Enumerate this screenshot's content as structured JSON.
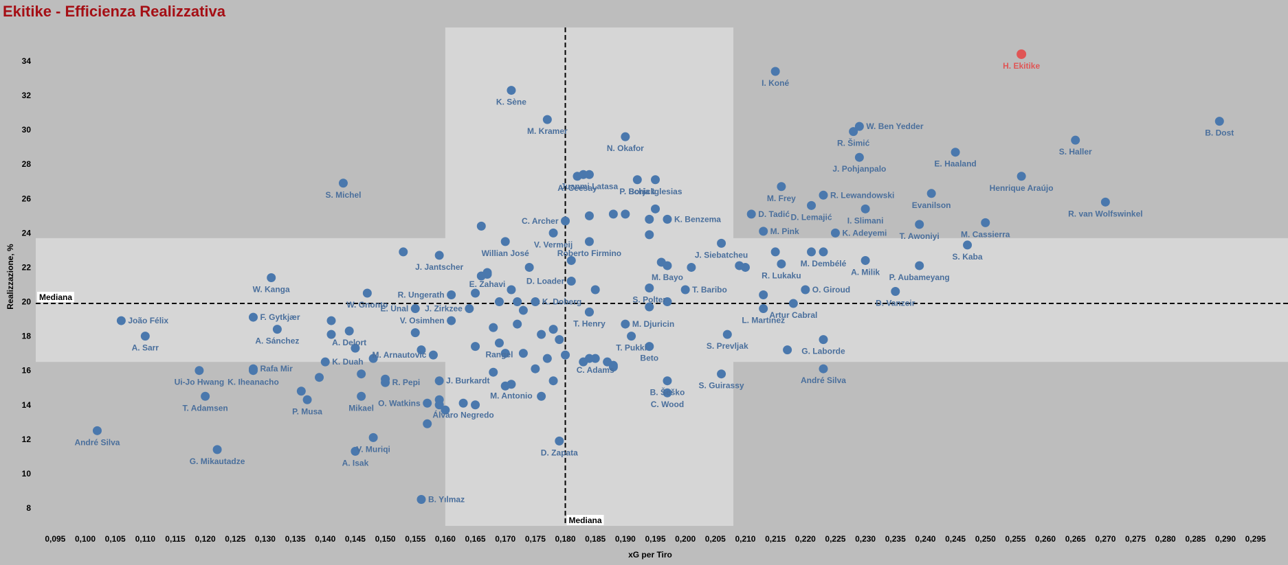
{
  "page": {
    "title": "Ekitike - Efficienza Realizzativa"
  },
  "chart_data": {
    "type": "scatter",
    "title": "Ekitike - Efficienza Realizzativa",
    "xlabel": "xG per Tiro",
    "ylabel": "Realizzazione, %",
    "xlim": [
      0.093,
      0.297
    ],
    "ylim": [
      6.8,
      35.5
    ],
    "x_ticks": [
      "0,095",
      "0,100",
      "0,105",
      "0,110",
      "0,115",
      "0,120",
      "0,125",
      "0,130",
      "0,135",
      "0,140",
      "0,145",
      "0,150",
      "0,155",
      "0,160",
      "0,165",
      "0,170",
      "0,175",
      "0,180",
      "0,185",
      "0,190",
      "0,195",
      "0,200",
      "0,205",
      "0,210",
      "0,215",
      "0,220",
      "0,225",
      "0,230",
      "0,235",
      "0,240",
      "0,245",
      "0,250",
      "0,255",
      "0,260",
      "0,265",
      "0,270",
      "0,275",
      "0,280",
      "0,285",
      "0,290",
      "0,295"
    ],
    "y_ticks": [
      "8",
      "10",
      "12",
      "14",
      "16",
      "18",
      "20",
      "22",
      "24",
      "26",
      "28",
      "30",
      "32",
      "34"
    ],
    "median_x": 0.18,
    "median_y": 19.9,
    "median_x_label": "Mediana",
    "median_y_label": "Mediana",
    "band_x": [
      0.16,
      0.208
    ],
    "band_y": [
      16.5,
      23.7
    ],
    "colors": {
      "background": "#bdbdbd",
      "band": "#d6d6d6",
      "point": "#4a78ad",
      "label": "#4a6f9c",
      "highlight": "#e05555",
      "title": "#a50f15"
    },
    "highlight": {
      "name": "H. Ekitike",
      "x": 0.256,
      "y": 34.4
    },
    "points": [
      {
        "name": "I. Koné",
        "x": 0.215,
        "y": 33.4
      },
      {
        "name": "K. Sène",
        "x": 0.171,
        "y": 32.3
      },
      {
        "name": "M. Kramer",
        "x": 0.177,
        "y": 30.6
      },
      {
        "name": "N. Okafor",
        "x": 0.19,
        "y": 29.6
      },
      {
        "name": "W. Ben Yedder",
        "x": 0.229,
        "y": 30.2
      },
      {
        "name": "R. Šimić",
        "x": 0.228,
        "y": 29.9
      },
      {
        "name": "J. Pohjanpalo",
        "x": 0.229,
        "y": 28.4
      },
      {
        "name": "E. Haaland",
        "x": 0.245,
        "y": 28.7
      },
      {
        "name": "S. Haller",
        "x": 0.265,
        "y": 29.4
      },
      {
        "name": "B. Dost",
        "x": 0.289,
        "y": 30.5
      },
      {
        "name": "S. Michel",
        "x": 0.143,
        "y": 26.9
      },
      {
        "name": "A. Ceesay",
        "x": 0.182,
        "y": 27.3
      },
      {
        "name": "P. Schick",
        "x": 0.192,
        "y": 27.1
      },
      {
        "name": "Borja Iglesias",
        "x": 0.195,
        "y": 27.1
      },
      {
        "name": "M. Frey",
        "x": 0.216,
        "y": 26.7
      },
      {
        "name": "R. Lewandowski",
        "x": 0.223,
        "y": 26.2
      },
      {
        "name": "Henrique Araújo",
        "x": 0.256,
        "y": 27.3
      },
      {
        "name": "Juanmi Latasa",
        "x": 0.184,
        "y": 27.4
      },
      {
        "name": "Evanilson",
        "x": 0.241,
        "y": 26.3
      },
      {
        "name": "R. van Wolfswinkel",
        "x": 0.27,
        "y": 25.8
      },
      {
        "name": "D. Tadić",
        "x": 0.211,
        "y": 25.1
      },
      {
        "name": "D. Lemajić",
        "x": 0.221,
        "y": 25.6
      },
      {
        "name": "I. Slimani",
        "x": 0.23,
        "y": 25.4
      },
      {
        "name": "K. Benzema",
        "x": 0.197,
        "y": 24.8
      },
      {
        "name": "C. Archer",
        "x": 0.18,
        "y": 24.7
      },
      {
        "name": "M. Pink",
        "x": 0.213,
        "y": 24.1
      },
      {
        "name": "K. Adeyemi",
        "x": 0.225,
        "y": 24.0
      },
      {
        "name": "T. Awoniyi",
        "x": 0.239,
        "y": 24.5
      },
      {
        "name": "M. Cassierra",
        "x": 0.25,
        "y": 24.6
      },
      {
        "name": "V. Vermeij",
        "x": 0.178,
        "y": 24.0
      },
      {
        "name": "Willian José",
        "x": 0.17,
        "y": 23.5
      },
      {
        "name": "Roberto Firmino",
        "x": 0.184,
        "y": 23.5
      },
      {
        "name": "J. Siebatcheu",
        "x": 0.206,
        "y": 23.4
      },
      {
        "name": "S. Kaba",
        "x": 0.247,
        "y": 23.3
      },
      {
        "name": "J. Jantscher",
        "x": 0.159,
        "y": 22.7
      },
      {
        "name": "M. Bayo",
        "x": 0.197,
        "y": 22.1
      },
      {
        "name": "R. Lukaku",
        "x": 0.216,
        "y": 22.2
      },
      {
        "name": "M. Dembélé",
        "x": 0.223,
        "y": 22.9
      },
      {
        "name": "A. Milik",
        "x": 0.23,
        "y": 22.4
      },
      {
        "name": "P. Aubameyang",
        "x": 0.239,
        "y": 22.1
      },
      {
        "name": "W. Kanga",
        "x": 0.131,
        "y": 21.4
      },
      {
        "name": "E. Zahavi",
        "x": 0.167,
        "y": 21.7
      },
      {
        "name": "D. Loader",
        "x": 0.181,
        "y": 21.2
      },
      {
        "name": "S. Polter",
        "x": 0.194,
        "y": 20.8
      },
      {
        "name": "T. Baribo",
        "x": 0.2,
        "y": 20.7
      },
      {
        "name": "O. Giroud",
        "x": 0.22,
        "y": 20.7
      },
      {
        "name": "W. Gnonto",
        "x": 0.147,
        "y": 20.5
      },
      {
        "name": "R. Ungerath",
        "x": 0.161,
        "y": 20.4
      },
      {
        "name": "K. Doberg",
        "x": 0.175,
        "y": 20.0
      },
      {
        "name": "Artur Cabral",
        "x": 0.218,
        "y": 19.9
      },
      {
        "name": "D. Vanzeir",
        "x": 0.235,
        "y": 20.6
      },
      {
        "name": "J. Zirkzee",
        "x": 0.164,
        "y": 19.6
      },
      {
        "name": "E. Ünal",
        "x": 0.155,
        "y": 19.6
      },
      {
        "name": "F. Gytkjær",
        "x": 0.128,
        "y": 19.1
      },
      {
        "name": "João Félix",
        "x": 0.106,
        "y": 18.9
      },
      {
        "name": "L. Martínez",
        "x": 0.213,
        "y": 19.6
      },
      {
        "name": "T. Henry",
        "x": 0.184,
        "y": 19.4
      },
      {
        "name": "M. Djuricin",
        "x": 0.19,
        "y": 18.7
      },
      {
        "name": "V. Osimhen",
        "x": 0.161,
        "y": 18.9
      },
      {
        "name": "A. Sánchez",
        "x": 0.132,
        "y": 18.4
      },
      {
        "name": "A. Sarr",
        "x": 0.11,
        "y": 18.0
      },
      {
        "name": "A. Delort",
        "x": 0.144,
        "y": 18.3
      },
      {
        "name": "S. Prevljak",
        "x": 0.207,
        "y": 18.1
      },
      {
        "name": "G. Laborde",
        "x": 0.223,
        "y": 17.8
      },
      {
        "name": "T. Pukki",
        "x": 0.191,
        "y": 18.0
      },
      {
        "name": "Beto",
        "x": 0.194,
        "y": 17.4
      },
      {
        "name": "Rangel",
        "x": 0.169,
        "y": 17.6
      },
      {
        "name": "C. Adams",
        "x": 0.185,
        "y": 16.7
      },
      {
        "name": "M. Arnautović",
        "x": 0.158,
        "y": 16.9
      },
      {
        "name": "K. Duah",
        "x": 0.14,
        "y": 16.5
      },
      {
        "name": "Rafa Mir",
        "x": 0.128,
        "y": 16.1
      },
      {
        "name": "Ui-Jo Hwang",
        "x": 0.119,
        "y": 16.0
      },
      {
        "name": "K. Iheanacho",
        "x": 0.128,
        "y": 16.0
      },
      {
        "name": "R. Pepi",
        "x": 0.15,
        "y": 15.3
      },
      {
        "name": "B. Šeško",
        "x": 0.197,
        "y": 15.4
      },
      {
        "name": "S. Guirassy",
        "x": 0.206,
        "y": 15.8
      },
      {
        "name": "André Silva",
        "x": 0.223,
        "y": 16.1
      },
      {
        "name": "J. Burkardt",
        "x": 0.159,
        "y": 15.4
      },
      {
        "name": "M. Antonio",
        "x": 0.171,
        "y": 15.2
      },
      {
        "name": "C. Wood",
        "x": 0.197,
        "y": 14.7
      },
      {
        "name": "T. Adamsen",
        "x": 0.12,
        "y": 14.5
      },
      {
        "name": "P. Musa",
        "x": 0.137,
        "y": 14.3
      },
      {
        "name": "Mikael",
        "x": 0.146,
        "y": 14.5
      },
      {
        "name": "O. Watkins",
        "x": 0.157,
        "y": 14.1
      },
      {
        "name": "Álvaro Negredo",
        "x": 0.163,
        "y": 14.1
      },
      {
        "name": "André Silva",
        "x": 0.102,
        "y": 12.5
      },
      {
        "name": "V. Muriqi",
        "x": 0.148,
        "y": 12.1
      },
      {
        "name": "D. Zapata",
        "x": 0.179,
        "y": 11.9
      },
      {
        "name": "G. Mikautadze",
        "x": 0.122,
        "y": 11.4
      },
      {
        "name": "A. Isak",
        "x": 0.145,
        "y": 11.3
      },
      {
        "name": "B. Yılmaz",
        "x": 0.156,
        "y": 8.5
      }
    ],
    "extra_points": [
      {
        "x": 0.183,
        "y": 27.4
      },
      {
        "x": 0.184,
        "y": 25.0
      },
      {
        "x": 0.188,
        "y": 25.1
      },
      {
        "x": 0.19,
        "y": 25.1
      },
      {
        "x": 0.195,
        "y": 25.4
      },
      {
        "x": 0.194,
        "y": 24.8
      },
      {
        "x": 0.166,
        "y": 24.4
      },
      {
        "x": 0.194,
        "y": 23.9
      },
      {
        "x": 0.153,
        "y": 22.9
      },
      {
        "x": 0.201,
        "y": 22.0
      },
      {
        "x": 0.209,
        "y": 22.1
      },
      {
        "x": 0.21,
        "y": 22.0
      },
      {
        "x": 0.215,
        "y": 22.9
      },
      {
        "x": 0.221,
        "y": 22.9
      },
      {
        "x": 0.181,
        "y": 22.4
      },
      {
        "x": 0.196,
        "y": 22.3
      },
      {
        "x": 0.166,
        "y": 21.5
      },
      {
        "x": 0.167,
        "y": 21.6
      },
      {
        "x": 0.174,
        "y": 22.0
      },
      {
        "x": 0.185,
        "y": 20.7
      },
      {
        "x": 0.171,
        "y": 20.7
      },
      {
        "x": 0.165,
        "y": 20.5
      },
      {
        "x": 0.169,
        "y": 20.0
      },
      {
        "x": 0.172,
        "y": 20.0
      },
      {
        "x": 0.197,
        "y": 20.0
      },
      {
        "x": 0.213,
        "y": 20.4
      },
      {
        "x": 0.173,
        "y": 19.5
      },
      {
        "x": 0.184,
        "y": 19.4
      },
      {
        "x": 0.194,
        "y": 19.7
      },
      {
        "x": 0.141,
        "y": 18.9
      },
      {
        "x": 0.168,
        "y": 18.5
      },
      {
        "x": 0.172,
        "y": 18.7
      },
      {
        "x": 0.178,
        "y": 18.4
      },
      {
        "x": 0.176,
        "y": 18.1
      },
      {
        "x": 0.141,
        "y": 18.1
      },
      {
        "x": 0.155,
        "y": 18.2
      },
      {
        "x": 0.179,
        "y": 17.8
      },
      {
        "x": 0.165,
        "y": 17.4
      },
      {
        "x": 0.145,
        "y": 17.3
      },
      {
        "x": 0.156,
        "y": 17.2
      },
      {
        "x": 0.217,
        "y": 17.2
      },
      {
        "x": 0.17,
        "y": 17.0
      },
      {
        "x": 0.173,
        "y": 17.0
      },
      {
        "x": 0.18,
        "y": 16.9
      },
      {
        "x": 0.177,
        "y": 16.7
      },
      {
        "x": 0.184,
        "y": 16.7
      },
      {
        "x": 0.183,
        "y": 16.5
      },
      {
        "x": 0.188,
        "y": 16.2
      },
      {
        "x": 0.187,
        "y": 16.5
      },
      {
        "x": 0.188,
        "y": 16.3
      },
      {
        "x": 0.148,
        "y": 16.7
      },
      {
        "x": 0.175,
        "y": 16.1
      },
      {
        "x": 0.168,
        "y": 15.9
      },
      {
        "x": 0.146,
        "y": 15.8
      },
      {
        "x": 0.139,
        "y": 15.6
      },
      {
        "x": 0.15,
        "y": 15.5
      },
      {
        "x": 0.178,
        "y": 15.4
      },
      {
        "x": 0.17,
        "y": 15.1
      },
      {
        "x": 0.136,
        "y": 14.8
      },
      {
        "x": 0.176,
        "y": 14.5
      },
      {
        "x": 0.159,
        "y": 14.0
      },
      {
        "x": 0.159,
        "y": 14.3
      },
      {
        "x": 0.16,
        "y": 13.7
      },
      {
        "x": 0.165,
        "y": 14.0
      },
      {
        "x": 0.157,
        "y": 12.9
      }
    ]
  }
}
